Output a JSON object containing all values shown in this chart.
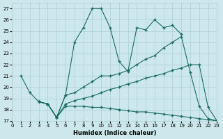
{
  "xlabel": "Humidex (Indice chaleur)",
  "bg_color": "#cce8ec",
  "grid_color": "#aacfd5",
  "line_color": "#1a6b60",
  "xlim": [
    0,
    23
  ],
  "ylim": [
    17,
    27.5
  ],
  "xticks": [
    0,
    1,
    2,
    3,
    4,
    5,
    6,
    7,
    8,
    9,
    10,
    11,
    12,
    13,
    14,
    15,
    16,
    17,
    18,
    19,
    20,
    21,
    22,
    23
  ],
  "yticks": [
    17,
    18,
    19,
    20,
    21,
    22,
    23,
    24,
    25,
    26,
    27
  ],
  "series": [
    {
      "x": [
        1,
        2,
        3,
        4,
        5,
        6,
        7,
        8,
        9,
        10,
        11,
        12,
        13,
        14,
        15,
        16,
        17,
        18,
        19
      ],
      "y": [
        21.0,
        19.5,
        18.7,
        18.5,
        17.3,
        19.3,
        24.0,
        25.3,
        27.0,
        27.0,
        25.3,
        22.3,
        21.4,
        25.3,
        25.1,
        26.0,
        25.3,
        25.5,
        24.7
      ]
    },
    {
      "x": [
        3,
        4,
        5,
        6,
        7,
        8,
        9,
        10,
        11,
        12,
        13,
        14,
        15,
        16,
        17,
        18,
        19,
        20,
        21,
        22,
        23
      ],
      "y": [
        18.7,
        18.5,
        17.3,
        19.3,
        19.5,
        20.0,
        20.5,
        21.0,
        21.0,
        21.2,
        21.5,
        22.0,
        22.5,
        22.8,
        23.5,
        24.0,
        24.5,
        21.3,
        18.3,
        17.2,
        17.0
      ]
    },
    {
      "x": [
        3,
        4,
        5,
        6,
        7,
        8,
        9,
        10,
        11,
        12,
        13,
        14,
        15,
        16,
        17,
        18,
        19,
        20,
        21,
        22,
        23
      ],
      "y": [
        18.7,
        18.5,
        17.3,
        18.5,
        18.8,
        19.0,
        19.2,
        19.5,
        19.8,
        20.0,
        20.3,
        20.5,
        20.8,
        21.0,
        21.2,
        21.5,
        21.7,
        22.0,
        22.0,
        18.2,
        17.0
      ]
    },
    {
      "x": [
        3,
        4,
        5,
        6,
        7,
        8,
        9,
        10,
        11,
        12,
        13,
        14,
        15,
        16,
        17,
        18,
        19,
        20,
        21,
        22,
        23
      ],
      "y": [
        18.7,
        18.5,
        17.3,
        18.3,
        18.3,
        18.3,
        18.2,
        18.2,
        18.1,
        18.0,
        17.9,
        17.8,
        17.8,
        17.7,
        17.6,
        17.5,
        17.4,
        17.3,
        17.2,
        17.1,
        17.0
      ]
    }
  ]
}
